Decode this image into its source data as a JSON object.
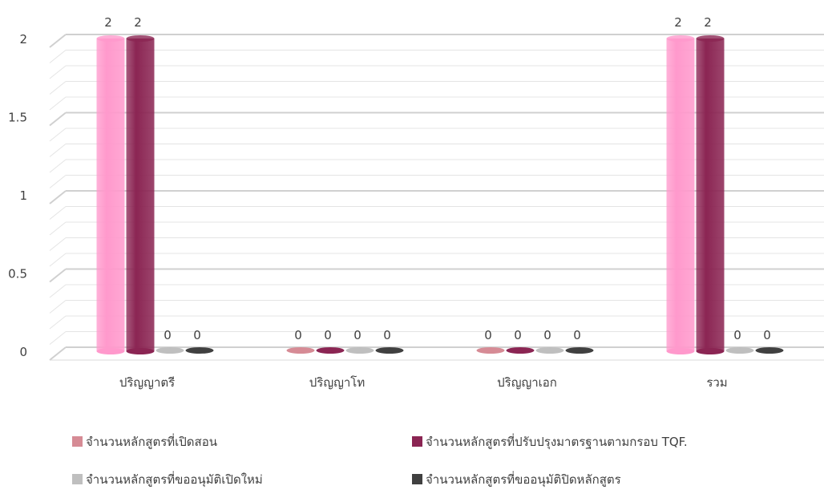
{
  "chart_data": {
    "type": "bar",
    "title": "",
    "xlabel": "",
    "ylabel": "",
    "categories": [
      "ปริญญาตรี",
      "ปริญญาโท",
      "ปริญญาเอก",
      "รวม"
    ],
    "series": [
      {
        "name": "จำนวนหลักสูตรที่เปิดสอน",
        "values": [
          2,
          0,
          0,
          2
        ],
        "color": "#ff99cc",
        "legend_color": "#d68b95"
      },
      {
        "name": "จำนวนหลักสูตรที่ปรับปรุงมาตรฐานตามกรอบ TQF.",
        "values": [
          2,
          0,
          0,
          2
        ],
        "color": "#8b2553",
        "legend_color": "#8b2553"
      },
      {
        "name": "จำนวนหลักสูตรที่ขออนุมัติเปิดใหม่",
        "values": [
          0,
          0,
          0,
          0
        ],
        "color": "#a6a6a6",
        "legend_color": "#bfbfbf"
      },
      {
        "name": "จำนวนหลักสูตรที่ขออนุมัติปิดหลักสูตร",
        "values": [
          0,
          0,
          0,
          0
        ],
        "color": "#3a3a3a",
        "legend_color": "#404040"
      }
    ],
    "data_labels": [
      [
        "2",
        "2",
        "0",
        "0"
      ],
      [
        "0",
        "0",
        "0",
        "0"
      ],
      [
        "0",
        "0",
        "0",
        "0"
      ],
      [
        "2",
        "2",
        "0",
        "0"
      ]
    ],
    "ylim": [
      0,
      2
    ],
    "y_ticks": [
      {
        "value": 0,
        "label": "0"
      },
      {
        "value": 0.5,
        "label": "0.5"
      },
      {
        "value": 1,
        "label": "1"
      },
      {
        "value": 1.5,
        "label": "1.5"
      },
      {
        "value": 2,
        "label": "2"
      }
    ],
    "grid": true,
    "style": "3d-cylinder",
    "legend_position": "bottom"
  }
}
